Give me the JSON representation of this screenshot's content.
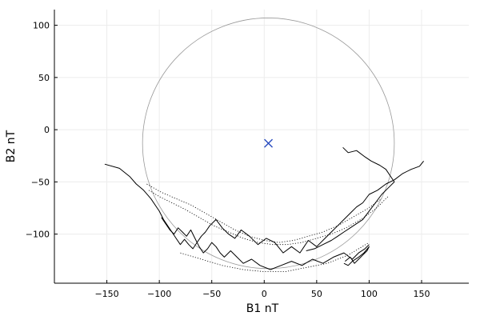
{
  "chart_data": {
    "type": "scatter",
    "title": "",
    "xlabel": "B1 nT",
    "ylabel": "B2 nT",
    "xlim": [
      -200,
      195
    ],
    "ylim": [
      -147,
      115
    ],
    "xticks": [
      -150,
      -100,
      -50,
      0,
      50,
      100,
      150
    ],
    "yticks": [
      -100,
      -50,
      0,
      50,
      100
    ],
    "grid": true,
    "legend": "none",
    "colors": {
      "trace": "#000000",
      "circle": "#999999",
      "marker": "#2a4dbf",
      "grid": "#ececec",
      "axis": "#000000"
    },
    "reference_circle": {
      "cx": 4,
      "cy": -13,
      "r": 120
    },
    "center_marker": {
      "x": 4,
      "y": -13,
      "symbol": "x"
    },
    "series": [
      {
        "values_xy": [
          [
            -152,
            -33
          ],
          [
            -138,
            -37
          ],
          [
            -128,
            -45
          ],
          [
            -122,
            -52
          ],
          [
            -115,
            -58
          ],
          [
            -108,
            -66
          ],
          [
            -100,
            -78
          ],
          [
            -96,
            -86
          ],
          [
            -92,
            -92
          ],
          [
            -88,
            -98
          ],
          [
            -84,
            -104
          ],
          [
            -80,
            -110
          ],
          [
            -76,
            -105
          ],
          [
            -72,
            -110
          ],
          [
            -68,
            -114
          ],
          [
            -64,
            -108
          ],
          [
            -60,
            -102
          ],
          [
            -56,
            -98
          ],
          [
            -52,
            -92
          ],
          [
            -46,
            -86
          ],
          [
            -40,
            -94
          ],
          [
            -34,
            -100
          ],
          [
            -28,
            -104
          ],
          [
            -22,
            -96
          ],
          [
            -14,
            -102
          ],
          [
            -6,
            -110
          ],
          [
            2,
            -104
          ],
          [
            10,
            -108
          ],
          [
            18,
            -118
          ],
          [
            26,
            -112
          ],
          [
            34,
            -118
          ],
          [
            42,
            -106
          ],
          [
            50,
            -112
          ],
          [
            58,
            -104
          ],
          [
            64,
            -98
          ],
          [
            70,
            -92
          ],
          [
            76,
            -86
          ],
          [
            82,
            -80
          ],
          [
            88,
            -74
          ],
          [
            94,
            -70
          ],
          [
            100,
            -62
          ],
          [
            108,
            -58
          ],
          [
            116,
            -52
          ],
          [
            124,
            -48
          ],
          [
            132,
            -42
          ],
          [
            140,
            -38
          ],
          [
            148,
            -35
          ],
          [
            152,
            -30
          ]
        ]
      },
      {
        "values_xy": [
          [
            -98,
            -84
          ],
          [
            -94,
            -90
          ],
          [
            -90,
            -96
          ],
          [
            -86,
            -100
          ],
          [
            -82,
            -94
          ],
          [
            -78,
            -98
          ],
          [
            -74,
            -102
          ],
          [
            -70,
            -96
          ],
          [
            -66,
            -104
          ],
          [
            -62,
            -112
          ],
          [
            -58,
            -118
          ],
          [
            -54,
            -114
          ],
          [
            -50,
            -108
          ],
          [
            -46,
            -112
          ],
          [
            -42,
            -118
          ],
          [
            -38,
            -122
          ],
          [
            -32,
            -116
          ],
          [
            -26,
            -122
          ],
          [
            -20,
            -128
          ],
          [
            -12,
            -124
          ],
          [
            -4,
            -130
          ],
          [
            6,
            -134
          ],
          [
            16,
            -130
          ],
          [
            26,
            -126
          ],
          [
            36,
            -130
          ],
          [
            46,
            -124
          ],
          [
            56,
            -128
          ],
          [
            66,
            -122
          ],
          [
            76,
            -118
          ],
          [
            84,
            -124
          ],
          [
            90,
            -118
          ],
          [
            96,
            -114
          ],
          [
            100,
            -110
          ]
        ]
      },
      {
        "values_xy": [
          [
            77,
            -126
          ],
          [
            82,
            -122
          ],
          [
            86,
            -128
          ],
          [
            90,
            -124
          ],
          [
            94,
            -120
          ],
          [
            98,
            -116
          ],
          [
            100,
            -112
          ],
          [
            95,
            -118
          ],
          [
            90,
            -122
          ],
          [
            84,
            -126
          ],
          [
            80,
            -130
          ],
          [
            76,
            -128
          ]
        ]
      },
      {
        "values_xy": [
          [
            75,
            -17
          ],
          [
            80,
            -22
          ],
          [
            88,
            -20
          ],
          [
            96,
            -26
          ],
          [
            102,
            -30
          ],
          [
            110,
            -34
          ],
          [
            116,
            -38
          ],
          [
            120,
            -44
          ],
          [
            124,
            -50
          ],
          [
            118,
            -56
          ],
          [
            112,
            -62
          ],
          [
            106,
            -70
          ],
          [
            100,
            -78
          ],
          [
            94,
            -86
          ],
          [
            88,
            -90
          ],
          [
            82,
            -94
          ],
          [
            76,
            -98
          ],
          [
            70,
            -102
          ],
          [
            64,
            -106
          ],
          [
            56,
            -110
          ],
          [
            48,
            -114
          ],
          [
            40,
            -116
          ]
        ]
      }
    ],
    "dotted_series": [
      {
        "values_xy": [
          [
            -110,
            -58
          ],
          [
            -100,
            -64
          ],
          [
            -88,
            -70
          ],
          [
            -76,
            -76
          ],
          [
            -62,
            -84
          ],
          [
            -48,
            -92
          ],
          [
            -34,
            -98
          ],
          [
            -20,
            -104
          ],
          [
            -6,
            -108
          ],
          [
            8,
            -110
          ],
          [
            22,
            -110
          ],
          [
            36,
            -108
          ],
          [
            50,
            -104
          ],
          [
            64,
            -100
          ],
          [
            78,
            -94
          ],
          [
            92,
            -86
          ],
          [
            106,
            -76
          ],
          [
            118,
            -64
          ]
        ]
      },
      {
        "values_xy": [
          [
            -112,
            -52
          ],
          [
            -98,
            -60
          ],
          [
            -84,
            -66
          ],
          [
            -70,
            -72
          ],
          [
            -56,
            -80
          ],
          [
            -42,
            -88
          ],
          [
            -28,
            -96
          ],
          [
            -14,
            -102
          ],
          [
            0,
            -106
          ],
          [
            14,
            -108
          ],
          [
            28,
            -106
          ],
          [
            42,
            -102
          ],
          [
            56,
            -98
          ],
          [
            70,
            -92
          ],
          [
            84,
            -84
          ],
          [
            98,
            -76
          ],
          [
            112,
            -66
          ]
        ]
      },
      {
        "values_xy": [
          [
            -80,
            -118
          ],
          [
            -60,
            -124
          ],
          [
            -40,
            -130
          ],
          [
            -20,
            -134
          ],
          [
            0,
            -136
          ],
          [
            20,
            -136
          ],
          [
            40,
            -132
          ],
          [
            60,
            -128
          ],
          [
            80,
            -120
          ],
          [
            100,
            -108
          ]
        ]
      }
    ]
  }
}
